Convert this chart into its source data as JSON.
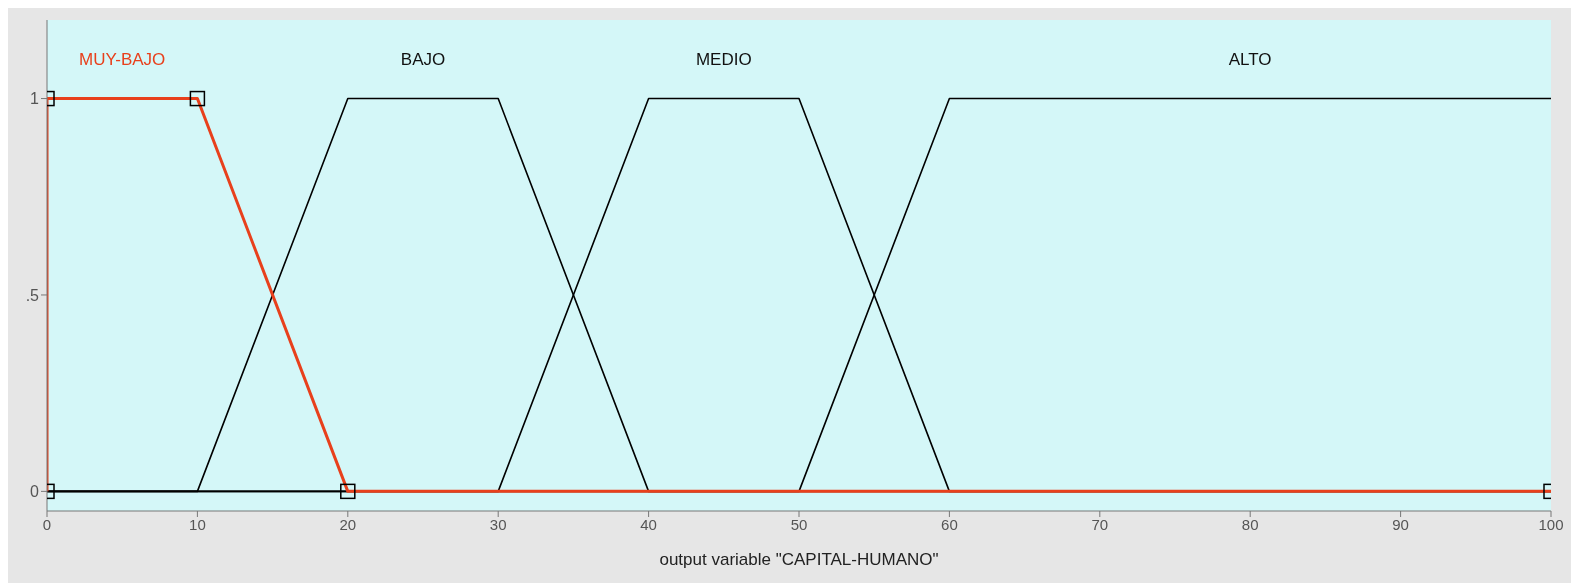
{
  "chart_data": {
    "type": "line",
    "xlabel": "output variable \"CAPITAL-HUMANO\"",
    "xlim": [
      0,
      100
    ],
    "xticks": [
      0,
      10,
      20,
      30,
      40,
      50,
      60,
      70,
      80,
      90,
      100
    ],
    "ylim": [
      -0.05,
      1.2
    ],
    "yticks": [
      0,
      {
        "value": 0.5,
        "label": ".5"
      },
      1
    ],
    "grid": false,
    "line_style": "solid",
    "series": [
      {
        "name": "BAJO",
        "color": "#000000",
        "marker": "none",
        "x": [
          0,
          10,
          20,
          30,
          40,
          100
        ],
        "values": [
          0,
          0,
          1,
          1,
          0,
          0
        ]
      },
      {
        "name": "MEDIO",
        "color": "#000000",
        "marker": "none",
        "x": [
          0,
          30,
          40,
          50,
          60,
          100
        ],
        "values": [
          0,
          0,
          1,
          1,
          0,
          0
        ]
      },
      {
        "name": "ALTO",
        "color": "#000000",
        "marker": "none",
        "x": [
          0,
          50,
          60,
          100
        ],
        "values": [
          0,
          0,
          1,
          1
        ]
      },
      {
        "name": "MUY-BAJO",
        "color": "#e8401c",
        "marker": "square",
        "x": [
          0,
          0,
          10,
          20,
          100
        ],
        "values": [
          0,
          1,
          1,
          0,
          0
        ]
      }
    ]
  }
}
